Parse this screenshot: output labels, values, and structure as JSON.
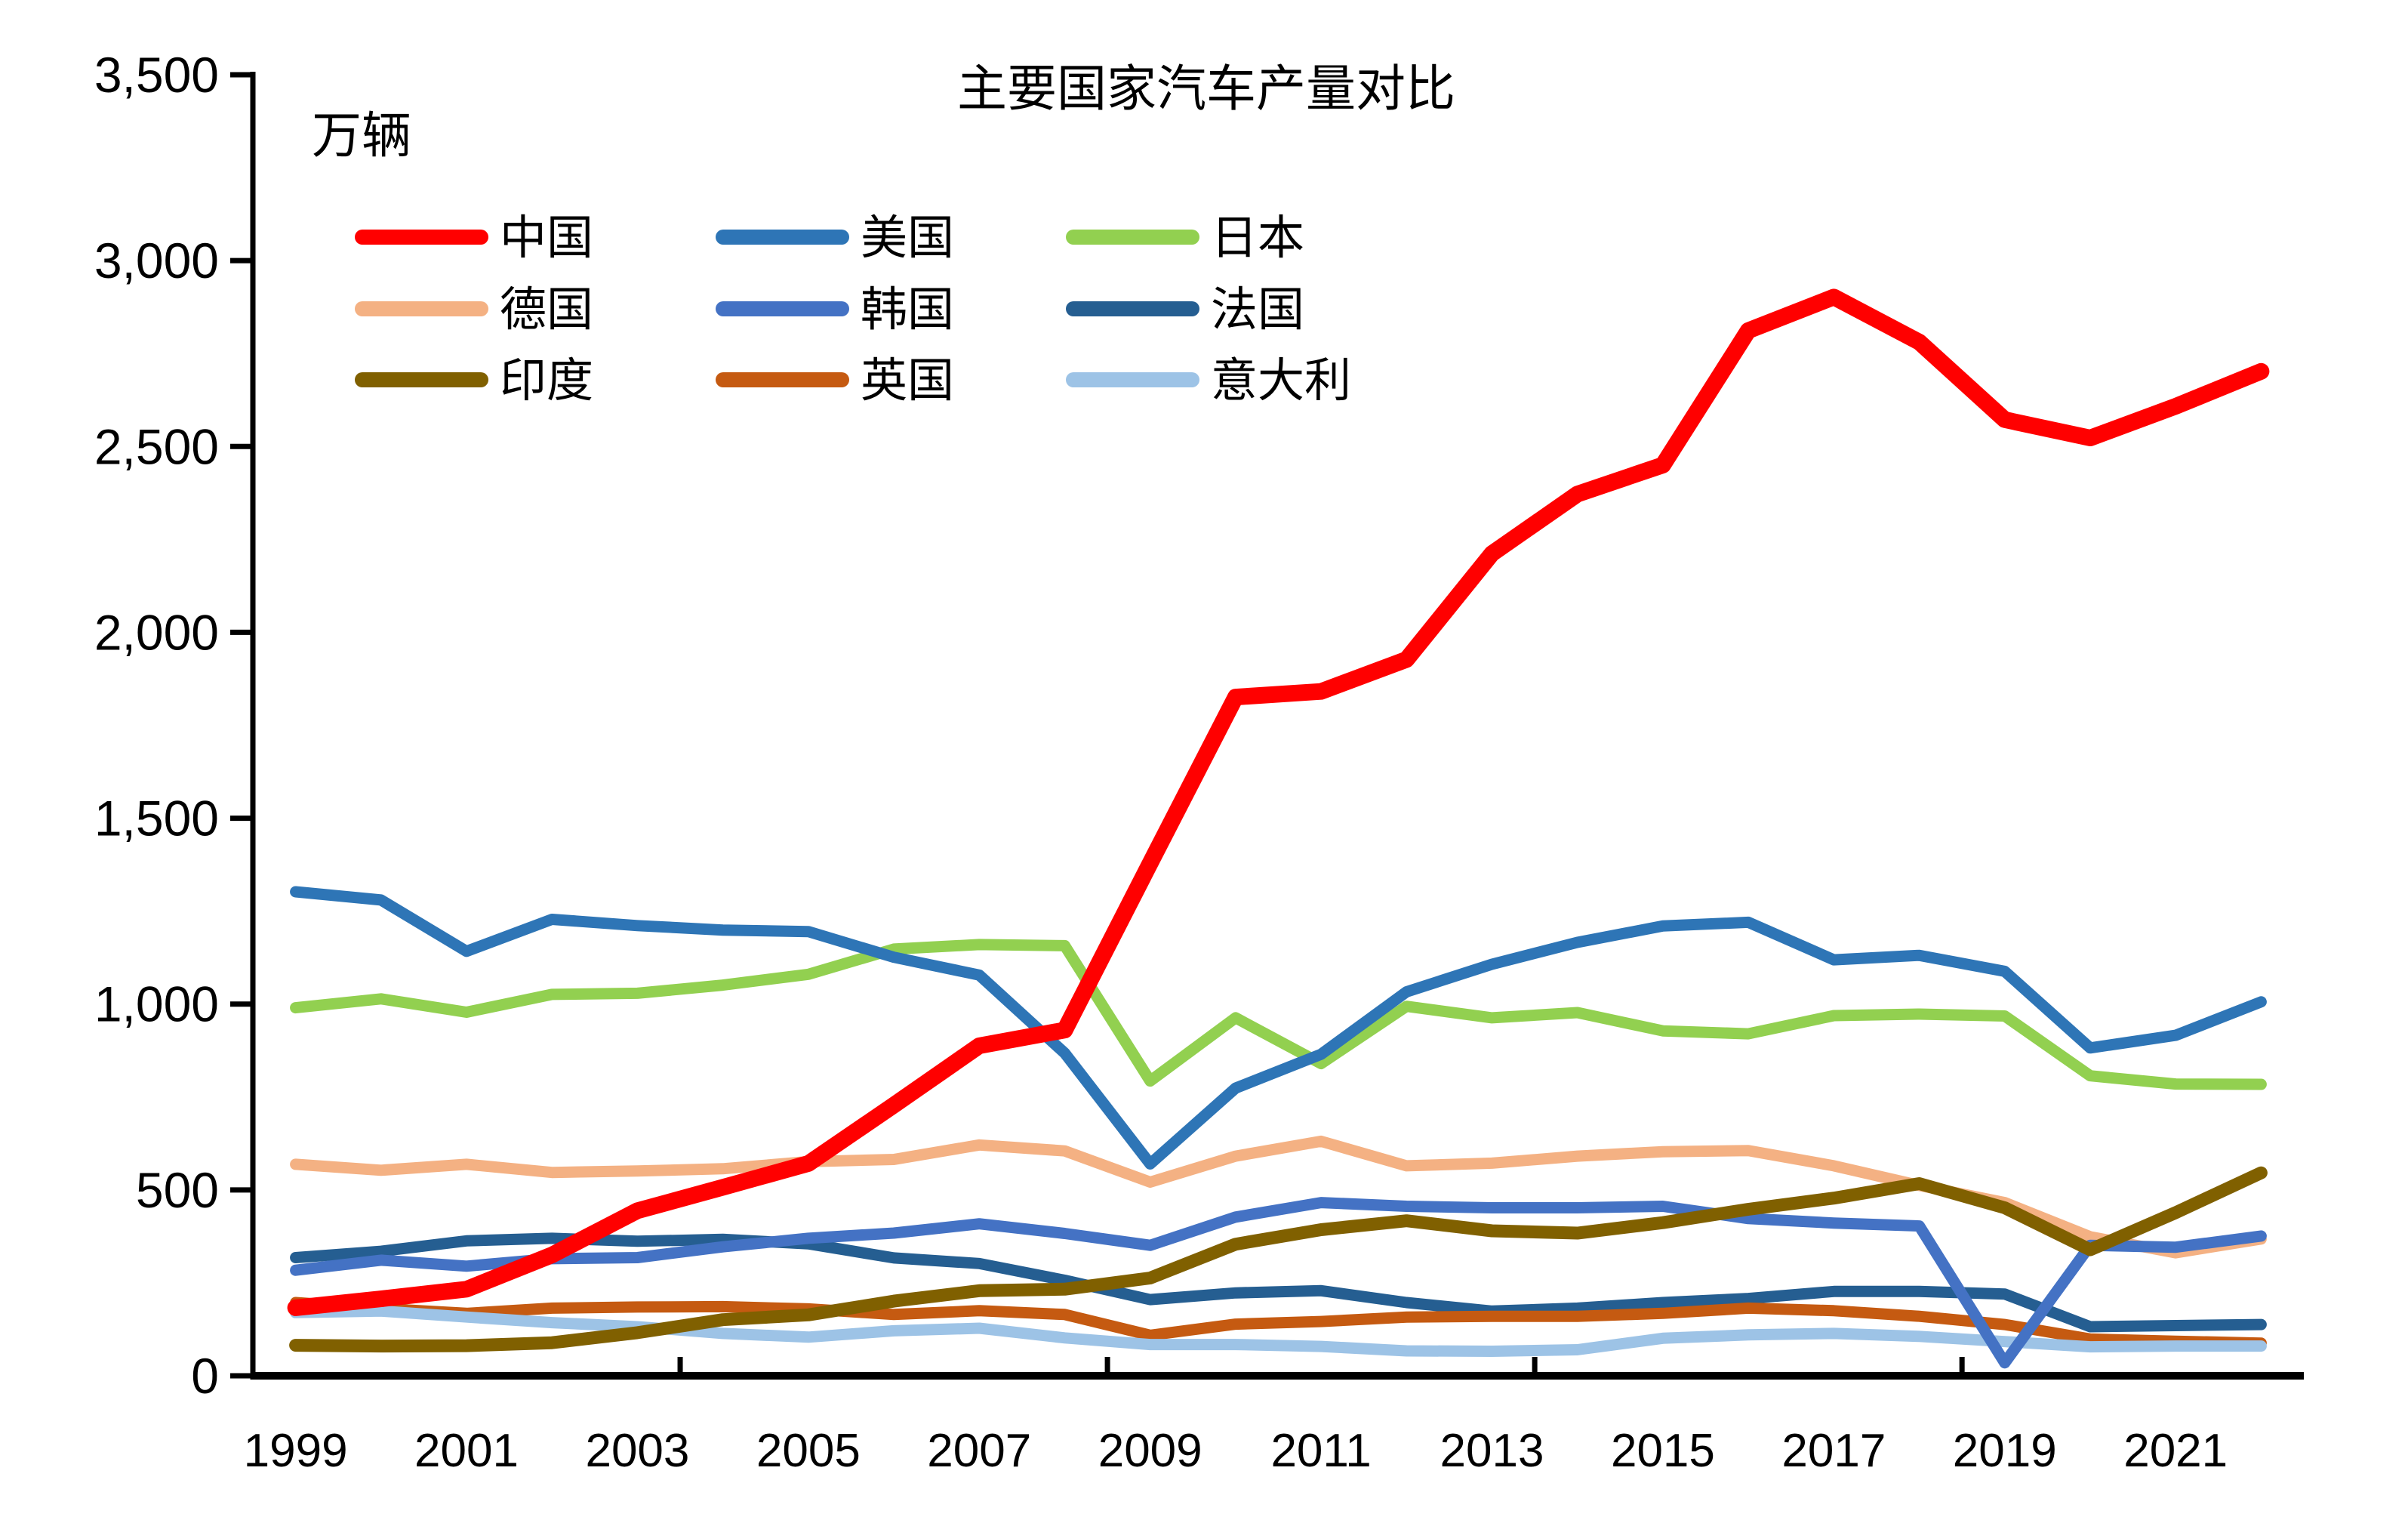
{
  "page": {
    "background": "#FFFFFF"
  },
  "chart_data": {
    "type": "line",
    "title": "主要国家汽车产量对比",
    "unit_label": "万辆",
    "x": [
      1999,
      2000,
      2001,
      2002,
      2003,
      2004,
      2005,
      2006,
      2007,
      2008,
      2009,
      2010,
      2011,
      2012,
      2013,
      2014,
      2015,
      2016,
      2017,
      2018,
      2019,
      2020,
      2021,
      2022
    ],
    "x_tick_labels": [
      "1999",
      "2001",
      "2003",
      "2005",
      "2007",
      "2009",
      "2011",
      "2013",
      "2015",
      "2017",
      "2019",
      "2021"
    ],
    "y_tick_labels": [
      "0",
      "500",
      "1,000",
      "1,500",
      "2,000",
      "2,500",
      "3,000",
      "3,500"
    ],
    "ylim": [
      0,
      3500
    ],
    "y_tick_step": 500,
    "grid": "off",
    "legend_position": "top-left",
    "axis_color": "#000000",
    "series": [
      {
        "name": "中国",
        "key": "china",
        "color": "#FF0000",
        "stroke_width": 22,
        "z": 9,
        "values": [
          183,
          207,
          233,
          325,
          444,
          507,
          571,
          728,
          888,
          930,
          1379,
          1826,
          1841,
          1927,
          2212,
          2372,
          2450,
          2812,
          2902,
          2781,
          2572,
          2523,
          2608,
          2702
        ]
      },
      {
        "name": "美国",
        "key": "usa",
        "color": "#2E75B6",
        "stroke_width": 15,
        "z": 2,
        "values": [
          1302,
          1280,
          1142,
          1228,
          1211,
          1199,
          1195,
          1126,
          1078,
          868,
          570,
          774,
          865,
          1033,
          1107,
          1166,
          1210,
          1220,
          1119,
          1131,
          1088,
          882,
          916,
          1006
        ]
      },
      {
        "name": "日本",
        "key": "japan",
        "color": "#92D050",
        "stroke_width": 15,
        "z": 1,
        "values": [
          990,
          1014,
          978,
          1026,
          1029,
          1051,
          1080,
          1148,
          1160,
          1157,
          793,
          963,
          840,
          994,
          963,
          977,
          928,
          920,
          969,
          973,
          968,
          807,
          785,
          784
        ]
      },
      {
        "name": "德国",
        "key": "germany",
        "color": "#F4B183",
        "stroke_width": 15,
        "z": 3,
        "values": [
          569,
          553,
          569,
          547,
          551,
          557,
          576,
          582,
          621,
          605,
          521,
          591,
          631,
          565,
          572,
          591,
          603,
          606,
          565,
          512,
          466,
          374,
          331,
          368
        ]
      },
      {
        "name": "韩国",
        "key": "korea",
        "color": "#4472C4",
        "stroke_width": 15,
        "z": 7,
        "values": [
          284,
          311,
          295,
          315,
          318,
          347,
          370,
          384,
          409,
          383,
          351,
          427,
          466,
          456,
          452,
          452,
          456,
          423,
          411,
          403,
          35,
          351,
          346,
          376
        ]
      },
      {
        "name": "法国",
        "key": "france",
        "color": "#255E91",
        "stroke_width": 15,
        "z": 4,
        "values": [
          318,
          335,
          363,
          370,
          362,
          367,
          355,
          317,
          302,
          257,
          205,
          223,
          229,
          197,
          174,
          182,
          197,
          208,
          227,
          227,
          220,
          132,
          135,
          138
        ]
      },
      {
        "name": "印度",
        "key": "india",
        "color": "#806000",
        "stroke_width": 17,
        "z": 8,
        "values": [
          82,
          80,
          81,
          89,
          116,
          151,
          164,
          201,
          229,
          233,
          263,
          354,
          393,
          417,
          390,
          384,
          412,
          448,
          478,
          517,
          452,
          339,
          439,
          546
        ]
      },
      {
        "name": "英国",
        "key": "uk",
        "color": "#C55A11",
        "stroke_width": 15,
        "z": 5,
        "values": [
          197,
          181,
          168,
          182,
          185,
          186,
          180,
          165,
          175,
          165,
          109,
          139,
          146,
          158,
          160,
          160,
          168,
          182,
          175,
          160,
          138,
          99,
          93,
          88
        ]
      },
      {
        "name": "意大利",
        "key": "italy",
        "color": "#9DC3E6",
        "stroke_width": 15,
        "z": 6,
        "values": [
          170,
          174,
          158,
          143,
          132,
          114,
          104,
          121,
          128,
          102,
          84,
          84,
          79,
          67,
          66,
          70,
          101,
          110,
          114,
          106,
          92,
          78,
          80,
          80
        ]
      }
    ]
  }
}
